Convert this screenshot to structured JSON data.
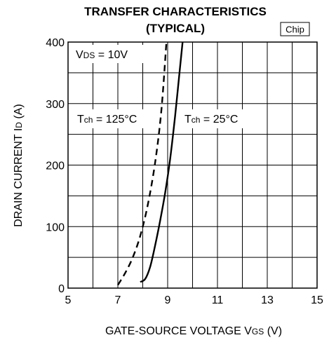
{
  "chart_data": {
    "type": "line",
    "title_line1": "TRANSFER CHARACTERISTICS",
    "title_line2": "(TYPICAL)",
    "badge": "Chip",
    "xlabel_main": "GATE-SOURCE VOLTAGE",
    "xlabel_sym": "V",
    "xlabel_sub": "GS",
    "xlabel_unit": " (V)",
    "ylabel_main": "DRAIN CURRENT",
    "ylabel_sym": "I",
    "ylabel_sub": "D",
    "ylabel_unit": " (A)",
    "xlim": [
      5,
      15
    ],
    "ylim": [
      0,
      400
    ],
    "x_ticks": [
      5,
      7,
      9,
      11,
      13,
      15
    ],
    "y_ticks": [
      0,
      100,
      200,
      300,
      400
    ],
    "x_grid_step": 1,
    "y_grid_step": 50,
    "grid": true,
    "annotations": {
      "vds": {
        "sym": "V",
        "sub": "DS",
        "text": " = 10V"
      },
      "t125": {
        "sym": "T",
        "sub": "ch",
        "text": " = 125°C"
      },
      "t25": {
        "sym": "T",
        "sub": "ch",
        "text": " = 25°C"
      }
    },
    "series": [
      {
        "line_style": "solid",
        "x": [
          7.9,
          8.1,
          8.3,
          8.5,
          8.7,
          8.9,
          9.1,
          9.3,
          9.45,
          9.6
        ],
        "y": [
          10,
          15,
          35,
          70,
          110,
          155,
          210,
          280,
          340,
          400
        ]
      },
      {
        "line_style": "dashed",
        "x": [
          7.0,
          7.3,
          7.6,
          7.9,
          8.2,
          8.5,
          8.75,
          8.95
        ],
        "y": [
          5,
          25,
          50,
          85,
          135,
          205,
          290,
          400
        ]
      }
    ]
  }
}
